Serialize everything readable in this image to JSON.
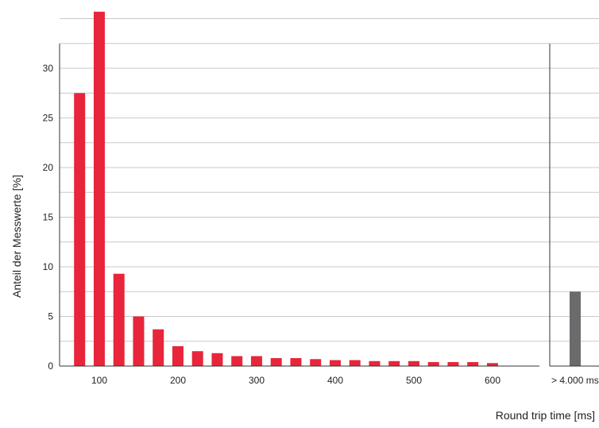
{
  "chart_data": {
    "type": "bar",
    "xlabel": "Round trip time [ms]",
    "ylabel": "Anteil der Messwerte [%]",
    "ylim": [
      0,
      35
    ],
    "yticks": [
      0,
      5,
      10,
      15,
      20,
      25,
      30
    ],
    "x_ticks": [
      "100",
      "200",
      "300",
      "400",
      "500",
      "600"
    ],
    "grid": true,
    "colors": {
      "main": "#e8253a",
      "overflow": "#6b6b6e",
      "grid": "#c9c9c9"
    },
    "series": [
      {
        "x": [
          80,
          105,
          130,
          155,
          180,
          205,
          230,
          255,
          280,
          305,
          330,
          355,
          380,
          405,
          430,
          455,
          480,
          505,
          530,
          555,
          580,
          605
        ],
        "values": [
          27.5,
          35.7,
          9.3,
          5.0,
          3.7,
          2.0,
          1.5,
          1.3,
          1.0,
          1.0,
          0.8,
          0.8,
          0.7,
          0.6,
          0.6,
          0.5,
          0.5,
          0.5,
          0.4,
          0.4,
          0.4,
          0.3
        ]
      }
    ],
    "overflow_bar": {
      "label": "> 4.000 ms",
      "value": 7.5
    }
  }
}
